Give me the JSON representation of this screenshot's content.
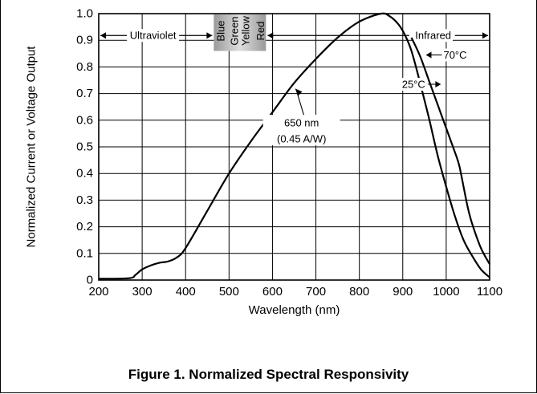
{
  "chart_data": {
    "type": "line",
    "title": "",
    "xlabel": "Wavelength (nm)",
    "ylabel": "Normalized Current or Voltage Output",
    "xlim": [
      200,
      1100
    ],
    "ylim": [
      0,
      1.0
    ],
    "xticks": [
      "200",
      "300",
      "400",
      "500",
      "600",
      "700",
      "800",
      "900",
      "1000",
      "1100"
    ],
    "yticks": [
      "0",
      "0.1",
      "0.2",
      "0.3",
      "0.4",
      "0.5",
      "0.6",
      "0.7",
      "0.8",
      "0.9",
      "1.0"
    ],
    "grid": true,
    "series": [
      {
        "name": "25°C",
        "points": [
          [
            200,
            0.005
          ],
          [
            270,
            0.007
          ],
          [
            285,
            0.02
          ],
          [
            300,
            0.04
          ],
          [
            320,
            0.055
          ],
          [
            340,
            0.065
          ],
          [
            360,
            0.07
          ],
          [
            380,
            0.085
          ],
          [
            400,
            0.12
          ],
          [
            450,
            0.26
          ],
          [
            500,
            0.4
          ],
          [
            550,
            0.52
          ],
          [
            600,
            0.63
          ],
          [
            650,
            0.74
          ],
          [
            700,
            0.83
          ],
          [
            750,
            0.91
          ],
          [
            800,
            0.97
          ],
          [
            850,
            1.0
          ],
          [
            870,
            0.99
          ],
          [
            890,
            0.96
          ],
          [
            905,
            0.92
          ],
          [
            920,
            0.86
          ],
          [
            940,
            0.74
          ],
          [
            960,
            0.61
          ],
          [
            980,
            0.47
          ],
          [
            1000,
            0.35
          ],
          [
            1020,
            0.24
          ],
          [
            1040,
            0.15
          ],
          [
            1060,
            0.09
          ],
          [
            1080,
            0.04
          ],
          [
            1100,
            0.01
          ]
        ]
      },
      {
        "name": "70°C",
        "points": [
          [
            920,
            0.91
          ],
          [
            940,
            0.84
          ],
          [
            960,
            0.75
          ],
          [
            980,
            0.66
          ],
          [
            1000,
            0.57
          ],
          [
            1020,
            0.48
          ],
          [
            1030,
            0.43
          ],
          [
            1040,
            0.35
          ],
          [
            1050,
            0.27
          ],
          [
            1060,
            0.21
          ],
          [
            1080,
            0.12
          ],
          [
            1100,
            0.06
          ]
        ]
      }
    ],
    "bands": {
      "ultraviolet": "Ultraviolet",
      "infrared": "Infrared",
      "visible": [
        "Blue",
        "Green",
        "Yellow",
        "Red"
      ]
    },
    "annotations": {
      "point_line1": "650 nm",
      "point_line2": "(0.45 A/W)",
      "label_25c": "25°C",
      "label_70c": "70°C"
    }
  },
  "caption": "Figure 1. Normalized Spectral Responsivity"
}
